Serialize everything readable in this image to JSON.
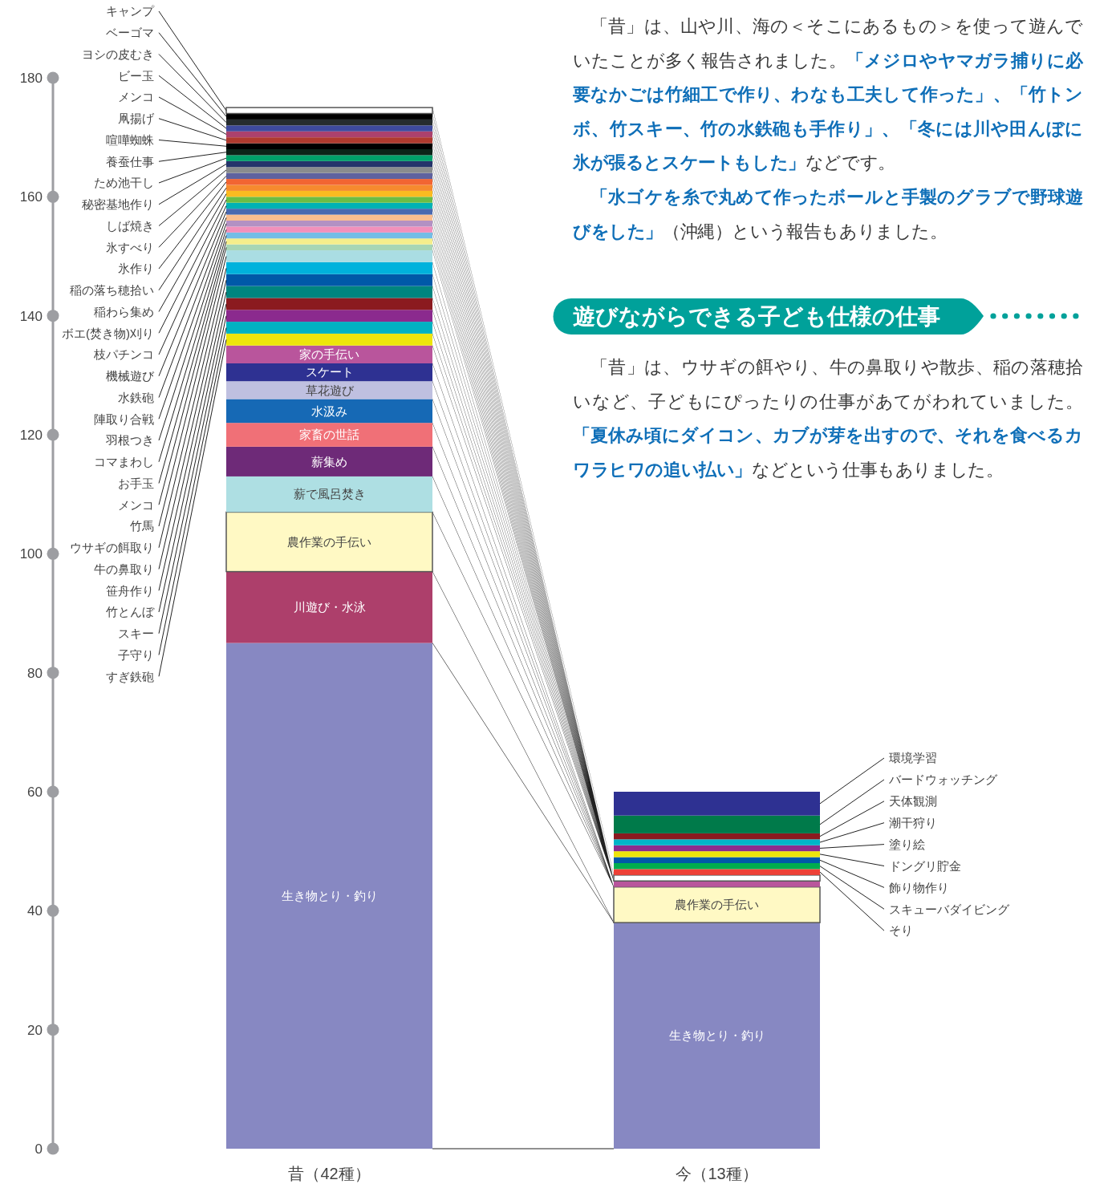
{
  "chart_data": {
    "type": "bar",
    "stacked": true,
    "categories": [
      "昔（42種）",
      "今（13種）"
    ],
    "ylim": [
      0,
      180
    ],
    "yticks": [
      0,
      20,
      40,
      60,
      80,
      100,
      120,
      140,
      160,
      180
    ],
    "grid": false,
    "series": [
      {
        "name": "生き物とり・釣り",
        "color": "#8788c2",
        "values": [
          85,
          38
        ]
      },
      {
        "name": "川遊び・水泳",
        "color": "#ad3f6b",
        "values": [
          12,
          null
        ]
      },
      {
        "name": "農作業の手伝い",
        "color": "#fff9c4",
        "values": [
          10,
          6
        ]
      },
      {
        "name": "薪で風呂焚き",
        "color": "#aedfe3",
        "values": [
          6,
          null
        ]
      },
      {
        "name": "薪集め",
        "color": "#6e2a78",
        "values": [
          5,
          null
        ]
      },
      {
        "name": "家畜の世話",
        "color": "#f07077",
        "values": [
          4,
          null
        ]
      },
      {
        "name": "水汲み",
        "color": "#1669b5",
        "values": [
          4,
          null
        ]
      },
      {
        "name": "草花遊び",
        "color": "#bfc0e0",
        "values": [
          3,
          null
        ]
      },
      {
        "name": "スケート",
        "color": "#2e3192",
        "values": [
          3,
          null
        ]
      },
      {
        "name": "家の手伝い",
        "color": "#b9559c",
        "values": [
          3,
          1
        ]
      },
      {
        "name": "すぎ鉄砲",
        "color": "#ede50c",
        "values": [
          2,
          null
        ]
      },
      {
        "name": "子守り",
        "color": "#00b2c2",
        "values": [
          2,
          null
        ]
      },
      {
        "name": "スキー",
        "color": "#8b2a8e",
        "values": [
          2,
          null
        ]
      },
      {
        "name": "竹とんぼ",
        "color": "#8b1a1f",
        "values": [
          2,
          null
        ]
      },
      {
        "name": "笹舟作り",
        "color": "#00857f",
        "values": [
          2,
          null
        ]
      },
      {
        "name": "牛の鼻取り",
        "color": "#0059a8",
        "values": [
          2,
          null
        ]
      },
      {
        "name": "ウサギの餌取り",
        "color": "#00b2dc",
        "values": [
          2,
          null
        ]
      },
      {
        "name": "竹馬",
        "color": "#aadde3",
        "values": [
          2,
          null
        ]
      },
      {
        "name": "メンコ",
        "color": "#a7d6b5",
        "values": [
          1,
          null
        ]
      },
      {
        "name": "お手玉",
        "color": "#f5ee8c",
        "values": [
          1,
          null
        ]
      },
      {
        "name": "コマまわし",
        "color": "#74bde6",
        "values": [
          1,
          null
        ]
      },
      {
        "name": "羽根つき",
        "color": "#f290bb",
        "values": [
          1,
          null
        ]
      },
      {
        "name": "陣取り合戦",
        "color": "#b391c3",
        "values": [
          1,
          null
        ]
      },
      {
        "name": "水鉄砲",
        "color": "#fbbe8f",
        "values": [
          1,
          null
        ]
      },
      {
        "name": "機械遊び",
        "color": "#4a69b0",
        "values": [
          1,
          null
        ]
      },
      {
        "name": "枝パチンコ",
        "color": "#00b2b5",
        "values": [
          1,
          null
        ]
      },
      {
        "name": "ボエ(焚き物)刈り",
        "color": "#6cbd45",
        "values": [
          1,
          null
        ]
      },
      {
        "name": "稲わら集め",
        "color": "#fbbb21",
        "values": [
          1,
          null
        ]
      },
      {
        "name": "稲の落ち穂拾い",
        "color": "#f68a2e",
        "values": [
          1,
          null
        ]
      },
      {
        "name": "氷作り",
        "color": "#f26532",
        "values": [
          1,
          null
        ]
      },
      {
        "name": "氷すべり",
        "color": "#5f629f",
        "values": [
          1,
          null
        ]
      },
      {
        "name": "しば焼き",
        "color": "#8a8c8e",
        "values": [
          1,
          null
        ]
      },
      {
        "name": "秘密基地作り",
        "color": "#25346b",
        "values": [
          1,
          null
        ]
      },
      {
        "name": "ため池干し",
        "color": "#00a06a",
        "values": [
          1,
          null
        ]
      },
      {
        "name": "養蚕仕事",
        "color": "#0c2419",
        "values": [
          1,
          null
        ]
      },
      {
        "name": "喧嘩蜘蛛",
        "color": "#000000",
        "values": [
          1,
          null
        ]
      },
      {
        "name": "凧揚げ",
        "color": "#b03a2e",
        "values": [
          1,
          null
        ]
      },
      {
        "name": "メンコ",
        "color": "#ac416d",
        "values": [
          1,
          null
        ]
      },
      {
        "name": "ビー玉",
        "color": "#3e4a9d",
        "values": [
          1,
          null
        ]
      },
      {
        "name": "ヨシの皮むき",
        "color": "#262c2e",
        "values": [
          1,
          null
        ]
      },
      {
        "name": "ベーゴマ",
        "color": "#000000",
        "values": [
          1,
          null
        ]
      },
      {
        "name": "キャンプ",
        "color": "#ffffff",
        "values": [
          1,
          1
        ]
      },
      {
        "name": "そり",
        "color": "#ee4036",
        "values": [
          null,
          1
        ]
      },
      {
        "name": "スキューバダイビング",
        "color": "#00ad4e",
        "values": [
          null,
          1
        ]
      },
      {
        "name": "飾り物作り",
        "color": "#0059a8",
        "values": [
          null,
          1
        ]
      },
      {
        "name": "ドングリ貯金",
        "color": "#ede50c",
        "values": [
          null,
          1
        ]
      },
      {
        "name": "塗り絵",
        "color": "#8b2a8e",
        "values": [
          null,
          1
        ]
      },
      {
        "name": "潮干狩り",
        "color": "#00b4c8",
        "values": [
          null,
          1
        ]
      },
      {
        "name": "天体観測",
        "color": "#8b1a1f",
        "values": [
          null,
          1
        ]
      },
      {
        "name": "バードウォッチング",
        "color": "#007a4a",
        "values": [
          null,
          3
        ]
      },
      {
        "name": "環境学習",
        "color": "#2e3192",
        "values": [
          null,
          4
        ]
      }
    ],
    "annotations": [
      "「昔」は、山や川、海の＜そこにあるもの＞を使って遊んでいたことが多く報告されました。",
      "「メジロやヤマガラ捕りに必要なかごは竹細工で作り、わなも工夫して作った」、「竹トンボ、竹スキー、竹の水鉄砲も手作り」、「冬には川や田んぼに氷が張るとスケートもした」",
      "などです。",
      "「水ゴケを糸で丸めて作ったボールと手製のグラブで野球遊びをした」",
      "（沖縄）という報告もありました。",
      "遊びながらできる子ども仕様の仕事",
      "「昔」は、ウサギの餌やり、牛の鼻取りや散歩、稲の落穂拾いなど、子どもにぴったりの仕事があてがわれていました。",
      "「夏休み頃にダイコン、カブが芽を出すので、それを食べるカワラヒワの追い払い」",
      "などという仕事もありました。"
    ]
  }
}
